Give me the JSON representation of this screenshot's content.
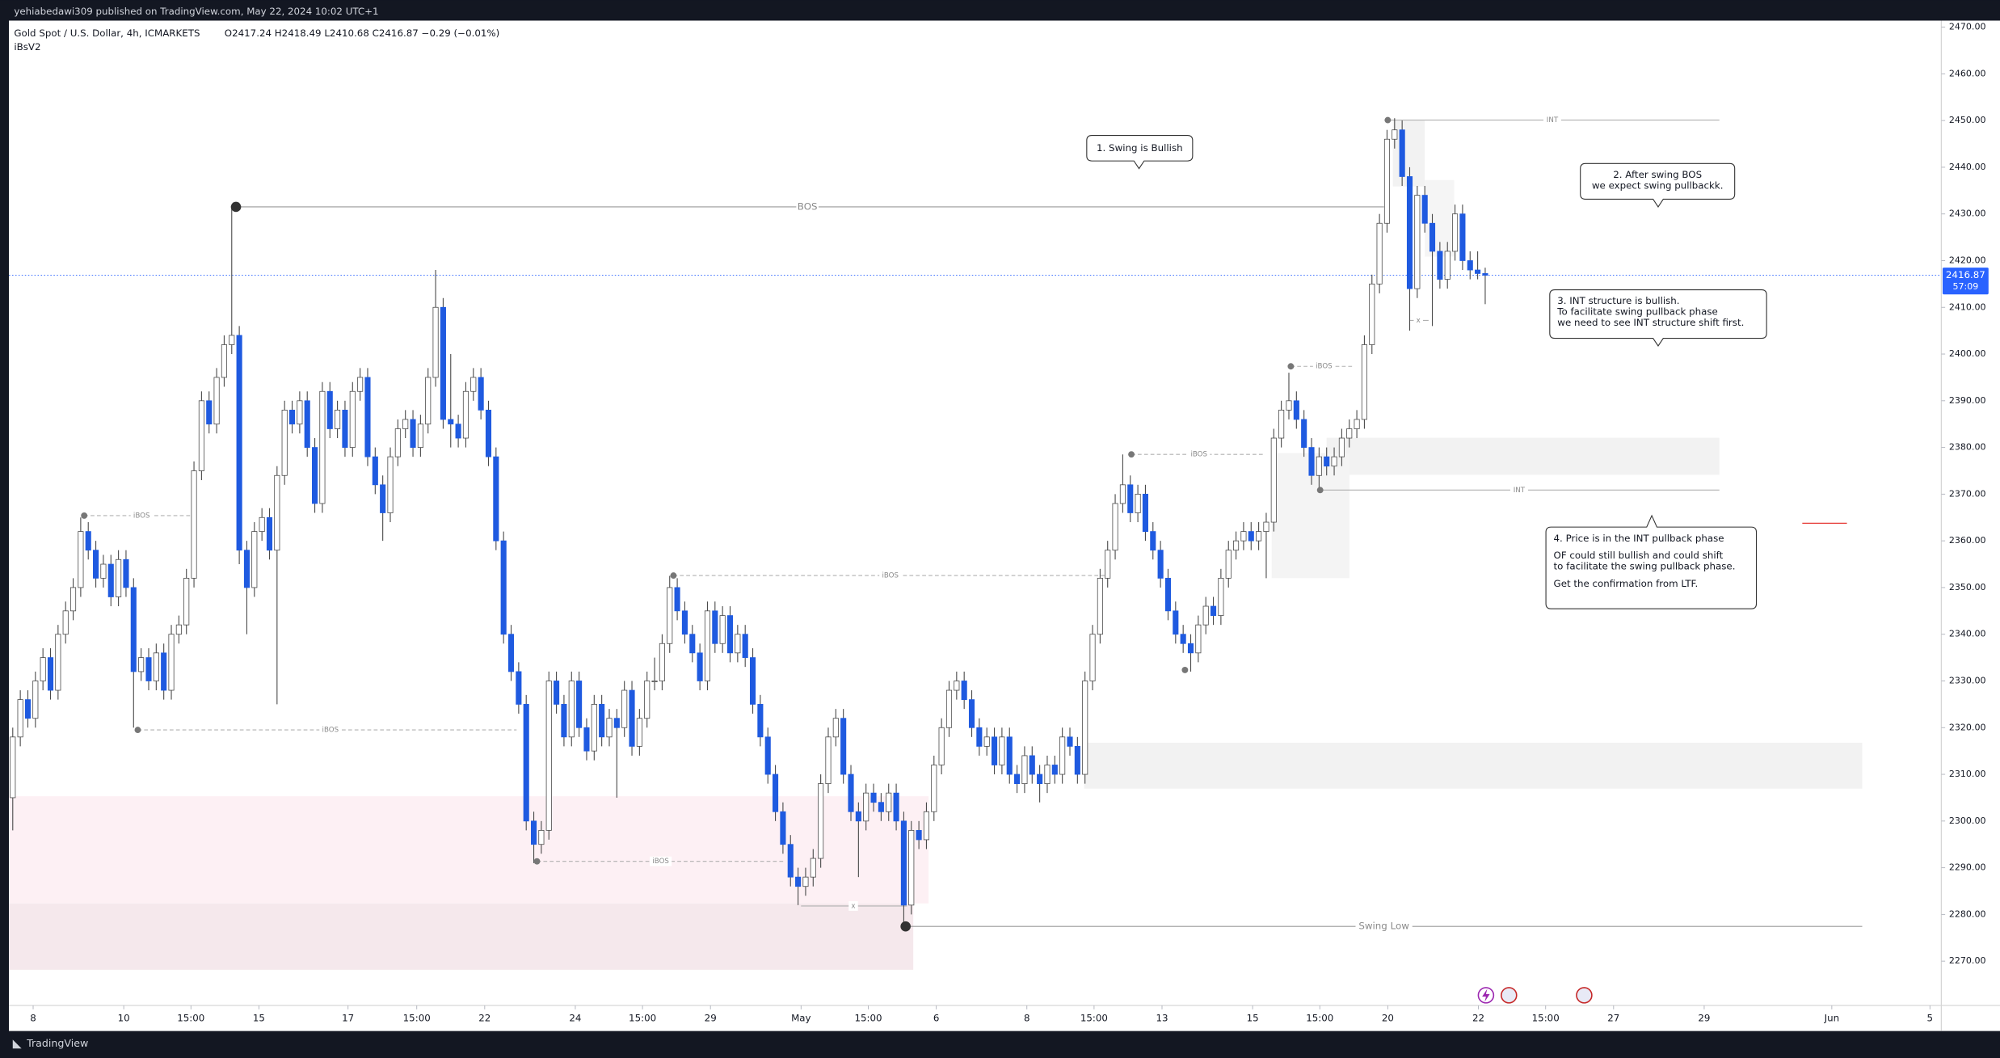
{
  "header": {
    "publisher": "yehiabedawi309 published on TradingView.com, May 22, 2024 10:02 UTC+1"
  },
  "chart_data": {
    "type": "candlestick",
    "symbol": "Gold Spot / U.S. Dollar, 4h, ICMARKETS",
    "ohlc_text": "O2417.24 H2418.49 L2410.68 C2416.87 −0.29 (−0.01%)",
    "indicator": "iBsV2",
    "colors": {
      "up": "#ffffff",
      "down": "#1f5ae0",
      "outline": "#4a4a4a"
    },
    "ylim": [
      2260.5,
      2471.4
    ],
    "yticks": [
      {
        "value": 2270,
        "label": "2270.00"
      },
      {
        "value": 2280,
        "label": "2280.00"
      },
      {
        "value": 2290,
        "label": "2290.00"
      },
      {
        "value": 2300,
        "label": "2300.00"
      },
      {
        "value": 2310,
        "label": "2310.00"
      },
      {
        "value": 2320,
        "label": "2320.00"
      },
      {
        "value": 2330,
        "label": "2330.00"
      },
      {
        "value": 2340,
        "label": "2340.00"
      },
      {
        "value": 2350,
        "label": "2350.00"
      },
      {
        "value": 2360,
        "label": "2360.00"
      },
      {
        "value": 2370,
        "label": "2370.00"
      },
      {
        "value": 2380,
        "label": "2380.00"
      },
      {
        "value": 2390,
        "label": "2390.00"
      },
      {
        "value": 2400,
        "label": "2400.00"
      },
      {
        "value": 2410,
        "label": "2410.00"
      },
      {
        "value": 2420,
        "label": "2420.00"
      },
      {
        "value": 2430,
        "label": "2430.00"
      },
      {
        "value": 2440,
        "label": "2440.00"
      },
      {
        "value": 2450,
        "label": "2450.00"
      },
      {
        "value": 2460,
        "label": "2460.00"
      },
      {
        "value": 2470,
        "label": "2470.00"
      }
    ],
    "xticks": [
      {
        "value": 2.7,
        "label": "8"
      },
      {
        "value": 14.7,
        "label": "10"
      },
      {
        "value": 23.6,
        "label": "15:00"
      },
      {
        "value": 32.6,
        "label": "15"
      },
      {
        "value": 44.4,
        "label": "17"
      },
      {
        "value": 53.5,
        "label": "15:00"
      },
      {
        "value": 62.5,
        "label": "22"
      },
      {
        "value": 74.5,
        "label": "24"
      },
      {
        "value": 83.4,
        "label": "15:00"
      },
      {
        "value": 92.4,
        "label": "29"
      },
      {
        "value": 104.4,
        "label": "May"
      },
      {
        "value": 113.3,
        "label": "15:00"
      },
      {
        "value": 122.3,
        "label": "6"
      },
      {
        "value": 134.3,
        "label": "8"
      },
      {
        "value": 143.2,
        "label": "15:00"
      },
      {
        "value": 152.2,
        "label": "13"
      },
      {
        "value": 164.2,
        "label": "15"
      },
      {
        "value": 173.1,
        "label": "15:00"
      },
      {
        "value": 182.1,
        "label": "20"
      },
      {
        "value": 194.1,
        "label": "22"
      },
      {
        "value": 203.0,
        "label": "15:00"
      },
      {
        "value": 212.0,
        "label": "27"
      },
      {
        "value": 224.0,
        "label": "29"
      },
      {
        "value": 240.9,
        "label": "Jun"
      },
      {
        "value": 253.9,
        "label": "5"
      }
    ],
    "last_price": {
      "value": 2416.87,
      "countdown": "57:09"
    },
    "candles": [
      [
        2305,
        2320,
        2298,
        2318
      ],
      [
        2318,
        2328,
        2316,
        2326
      ],
      [
        2326,
        2328,
        2320,
        2322
      ],
      [
        2322,
        2332,
        2320,
        2330
      ],
      [
        2330,
        2337,
        2328,
        2335
      ],
      [
        2335,
        2337,
        2326,
        2328
      ],
      [
        2328,
        2342,
        2326,
        2340
      ],
      [
        2340,
        2347,
        2338,
        2345
      ],
      [
        2345,
        2352,
        2343,
        2350
      ],
      [
        2350,
        2365,
        2348,
        2362
      ],
      [
        2362,
        2364,
        2356,
        2358
      ],
      [
        2358,
        2360,
        2350,
        2352
      ],
      [
        2352,
        2357,
        2350,
        2355
      ],
      [
        2355,
        2357,
        2346,
        2348
      ],
      [
        2348,
        2358,
        2346,
        2356
      ],
      [
        2356,
        2358,
        2348,
        2350
      ],
      [
        2350,
        2352,
        2320,
        2332
      ],
      [
        2332,
        2337,
        2330,
        2335
      ],
      [
        2335,
        2337,
        2328,
        2330
      ],
      [
        2330,
        2338,
        2328,
        2336
      ],
      [
        2336,
        2338,
        2326,
        2328
      ],
      [
        2328,
        2342,
        2326,
        2340
      ],
      [
        2340,
        2344,
        2338,
        2342
      ],
      [
        2342,
        2354,
        2340,
        2352
      ],
      [
        2352,
        2377,
        2350,
        2375
      ],
      [
        2375,
        2392,
        2373,
        2390
      ],
      [
        2390,
        2392,
        2383,
        2385
      ],
      [
        2385,
        2397,
        2383,
        2395
      ],
      [
        2395,
        2404,
        2393,
        2402
      ],
      [
        2402,
        2431.5,
        2400,
        2404
      ],
      [
        2404,
        2406,
        2355,
        2358
      ],
      [
        2358,
        2360,
        2340,
        2350
      ],
      [
        2350,
        2364,
        2348,
        2362
      ],
      [
        2362,
        2367,
        2360,
        2365
      ],
      [
        2365,
        2367,
        2356,
        2358
      ],
      [
        2358,
        2376,
        2325,
        2374
      ],
      [
        2374,
        2390,
        2372,
        2388
      ],
      [
        2388,
        2390,
        2383,
        2385
      ],
      [
        2385,
        2392,
        2383,
        2390
      ],
      [
        2390,
        2392,
        2378,
        2380
      ],
      [
        2380,
        2382,
        2366,
        2368
      ],
      [
        2368,
        2394,
        2366,
        2392
      ],
      [
        2392,
        2394,
        2382,
        2384
      ],
      [
        2384,
        2390,
        2382,
        2388
      ],
      [
        2388,
        2390,
        2378,
        2380
      ],
      [
        2380,
        2394,
        2378,
        2392
      ],
      [
        2392,
        2397,
        2390,
        2395
      ],
      [
        2395,
        2397,
        2376,
        2378
      ],
      [
        2378,
        2380,
        2370,
        2372
      ],
      [
        2372,
        2374,
        2360,
        2366
      ],
      [
        2366,
        2380,
        2364,
        2378
      ],
      [
        2378,
        2386,
        2376,
        2384
      ],
      [
        2384,
        2388,
        2382,
        2386
      ],
      [
        2386,
        2388,
        2378,
        2380
      ],
      [
        2380,
        2387,
        2378,
        2385
      ],
      [
        2385,
        2397,
        2383,
        2395
      ],
      [
        2395,
        2418,
        2393,
        2410
      ],
      [
        2410,
        2412,
        2384,
        2386
      ],
      [
        2386,
        2400,
        2380,
        2385
      ],
      [
        2385,
        2387,
        2380,
        2382
      ],
      [
        2382,
        2394,
        2380,
        2392
      ],
      [
        2392,
        2397,
        2390,
        2395
      ],
      [
        2395,
        2397,
        2386,
        2388
      ],
      [
        2388,
        2390,
        2376,
        2378
      ],
      [
        2378,
        2380,
        2358,
        2360
      ],
      [
        2360,
        2362,
        2338,
        2340
      ],
      [
        2340,
        2342,
        2330,
        2332
      ],
      [
        2332,
        2334,
        2323,
        2325
      ],
      [
        2325,
        2327,
        2298,
        2300
      ],
      [
        2300,
        2302,
        2291,
        2295
      ],
      [
        2295,
        2300,
        2293,
        2298
      ],
      [
        2298,
        2332,
        2296,
        2330
      ],
      [
        2330,
        2332,
        2323,
        2325
      ],
      [
        2325,
        2327,
        2316,
        2318
      ],
      [
        2318,
        2332,
        2316,
        2330
      ],
      [
        2330,
        2332,
        2318,
        2320
      ],
      [
        2320,
        2322,
        2313,
        2315
      ],
      [
        2315,
        2327,
        2313,
        2325
      ],
      [
        2325,
        2327,
        2316,
        2318
      ],
      [
        2318,
        2324,
        2316,
        2322
      ],
      [
        2322,
        2324,
        2305,
        2320
      ],
      [
        2320,
        2330,
        2318,
        2328
      ],
      [
        2328,
        2330,
        2314,
        2316
      ],
      [
        2316,
        2324,
        2314,
        2322
      ],
      [
        2322,
        2332,
        2320,
        2330
      ],
      [
        2330,
        2335,
        2328,
        2330
      ],
      [
        2330,
        2340,
        2328,
        2338
      ],
      [
        2338,
        2352.5,
        2336,
        2350
      ],
      [
        2350,
        2352,
        2343,
        2345
      ],
      [
        2345,
        2347,
        2338,
        2340
      ],
      [
        2340,
        2342,
        2334,
        2336
      ],
      [
        2336,
        2338,
        2328,
        2330
      ],
      [
        2330,
        2347,
        2328,
        2345
      ],
      [
        2345,
        2347,
        2336,
        2338
      ],
      [
        2338,
        2346,
        2336,
        2344
      ],
      [
        2344,
        2346,
        2334,
        2336
      ],
      [
        2336,
        2342,
        2334,
        2340
      ],
      [
        2340,
        2342,
        2333,
        2335
      ],
      [
        2335,
        2337,
        2323,
        2325
      ],
      [
        2325,
        2327,
        2316,
        2318
      ],
      [
        2318,
        2320,
        2308,
        2310
      ],
      [
        2310,
        2312,
        2300,
        2302
      ],
      [
        2302,
        2304,
        2293,
        2295
      ],
      [
        2295,
        2297,
        2286,
        2288
      ],
      [
        2288,
        2290,
        2282,
        2286
      ],
      [
        2286,
        2290,
        2284,
        2288
      ],
      [
        2288,
        2294,
        2286,
        2292
      ],
      [
        2292,
        2310,
        2290,
        2308
      ],
      [
        2308,
        2320,
        2306,
        2318
      ],
      [
        2318,
        2324,
        2316,
        2322
      ],
      [
        2322,
        2324,
        2308,
        2310
      ],
      [
        2310,
        2312,
        2300,
        2302
      ],
      [
        2302,
        2304,
        2288,
        2300
      ],
      [
        2300,
        2308,
        2298,
        2306
      ],
      [
        2306,
        2308,
        2302,
        2304
      ],
      [
        2304,
        2306,
        2300,
        2302
      ],
      [
        2302,
        2308,
        2300,
        2306
      ],
      [
        2306,
        2308,
        2298,
        2300
      ],
      [
        2300,
        2302,
        2277.4,
        2282
      ],
      [
        2282,
        2300,
        2280,
        2298
      ],
      [
        2298,
        2300,
        2294,
        2296
      ],
      [
        2296,
        2304,
        2294,
        2302
      ],
      [
        2302,
        2314,
        2300,
        2312
      ],
      [
        2312,
        2322,
        2310,
        2320
      ],
      [
        2320,
        2330,
        2318,
        2328
      ],
      [
        2328,
        2332,
        2326,
        2330
      ],
      [
        2330,
        2332,
        2324,
        2326
      ],
      [
        2326,
        2328,
        2318,
        2320
      ],
      [
        2320,
        2322,
        2314,
        2316
      ],
      [
        2316,
        2320,
        2314,
        2318
      ],
      [
        2318,
        2320,
        2310,
        2312
      ],
      [
        2312,
        2320,
        2310,
        2318
      ],
      [
        2318,
        2320,
        2308,
        2310
      ],
      [
        2310,
        2312,
        2306,
        2308
      ],
      [
        2308,
        2316,
        2306,
        2314
      ],
      [
        2314,
        2316,
        2308,
        2310
      ],
      [
        2310,
        2312,
        2304,
        2308
      ],
      [
        2308,
        2314,
        2306,
        2312
      ],
      [
        2312,
        2314,
        2308,
        2310
      ],
      [
        2310,
        2320,
        2308,
        2318
      ],
      [
        2318,
        2320,
        2314,
        2316
      ],
      [
        2316,
        2318,
        2308,
        2310
      ],
      [
        2310,
        2332,
        2308,
        2330
      ],
      [
        2330,
        2342,
        2328,
        2340
      ],
      [
        2340,
        2354,
        2338,
        2352
      ],
      [
        2352,
        2360,
        2350,
        2358
      ],
      [
        2358,
        2370,
        2356,
        2368
      ],
      [
        2368,
        2378.5,
        2366,
        2372
      ],
      [
        2372,
        2374,
        2364,
        2366
      ],
      [
        2366,
        2372,
        2364,
        2370
      ],
      [
        2370,
        2372,
        2360,
        2362
      ],
      [
        2362,
        2364,
        2356,
        2358
      ],
      [
        2358,
        2360,
        2350,
        2352
      ],
      [
        2352,
        2354,
        2343,
        2345
      ],
      [
        2345,
        2347,
        2338,
        2340
      ],
      [
        2340,
        2342,
        2336,
        2338
      ],
      [
        2338,
        2340,
        2332,
        2336
      ],
      [
        2336,
        2344,
        2334,
        2342
      ],
      [
        2342,
        2348,
        2340,
        2346
      ],
      [
        2346,
        2348,
        2342,
        2344
      ],
      [
        2344,
        2354,
        2342,
        2352
      ],
      [
        2352,
        2360,
        2350,
        2358
      ],
      [
        2358,
        2362,
        2356,
        2360
      ],
      [
        2360,
        2364,
        2358,
        2362
      ],
      [
        2362,
        2364,
        2358,
        2360
      ],
      [
        2360,
        2364,
        2358,
        2362
      ],
      [
        2362,
        2366,
        2352,
        2364
      ],
      [
        2364,
        2384,
        2362,
        2382
      ],
      [
        2382,
        2390,
        2380,
        2388
      ],
      [
        2388,
        2396,
        2386,
        2390
      ],
      [
        2390,
        2392,
        2384,
        2386
      ],
      [
        2386,
        2388,
        2378,
        2380
      ],
      [
        2380,
        2382,
        2372,
        2374
      ],
      [
        2374,
        2380,
        2371,
        2378
      ],
      [
        2378,
        2380,
        2374,
        2376
      ],
      [
        2376,
        2380,
        2374,
        2378
      ],
      [
        2378,
        2384,
        2376,
        2382
      ],
      [
        2382,
        2386,
        2380,
        2384
      ],
      [
        2384,
        2388,
        2382,
        2386
      ],
      [
        2386,
        2404,
        2384,
        2402
      ],
      [
        2402,
        2417,
        2400,
        2415
      ],
      [
        2415,
        2430,
        2413,
        2428
      ],
      [
        2428,
        2448,
        2426,
        2446
      ],
      [
        2446,
        2450.5,
        2444,
        2448
      ],
      [
        2448,
        2450,
        2436,
        2438
      ],
      [
        2438,
        2440,
        2405,
        2414
      ],
      [
        2414,
        2436,
        2412,
        2434
      ],
      [
        2434,
        2436,
        2426,
        2428
      ],
      [
        2428,
        2430,
        2406,
        2422
      ],
      [
        2422,
        2424,
        2414,
        2416
      ],
      [
        2416,
        2424,
        2414,
        2422
      ],
      [
        2422,
        2432,
        2420,
        2430
      ],
      [
        2430,
        2432,
        2418,
        2420
      ],
      [
        2420,
        2422,
        2416,
        2418
      ],
      [
        2418,
        2422,
        2416,
        2417.24
      ],
      [
        2417.24,
        2418.49,
        2410.68,
        2416.87
      ]
    ],
    "level_labels": [
      "BOS",
      "iBOS",
      "iBOS",
      "iBOS",
      "iBOS",
      "iBOS",
      "iBOS",
      "INT",
      "INT",
      "Swing Low",
      "x",
      "x"
    ],
    "annotations": [
      {
        "lines": [
          "1. Swing is Bullish"
        ]
      },
      {
        "lines": [
          "2. After swing BOS",
          "we expect swing pullbackk."
        ]
      },
      {
        "lines": [
          "3. INT structure is bullish.",
          "To facilitate swing pullback phase",
          "we need to see INT structure shift first."
        ]
      },
      {
        "lines": [
          "4. Price is in the INT pullback phase",
          "OF could still bullish and could shift",
          "to facilitate the swing pullback phase.",
          "Get the confirmation from LTF."
        ]
      }
    ]
  },
  "footer": {
    "brand": "TradingView"
  }
}
